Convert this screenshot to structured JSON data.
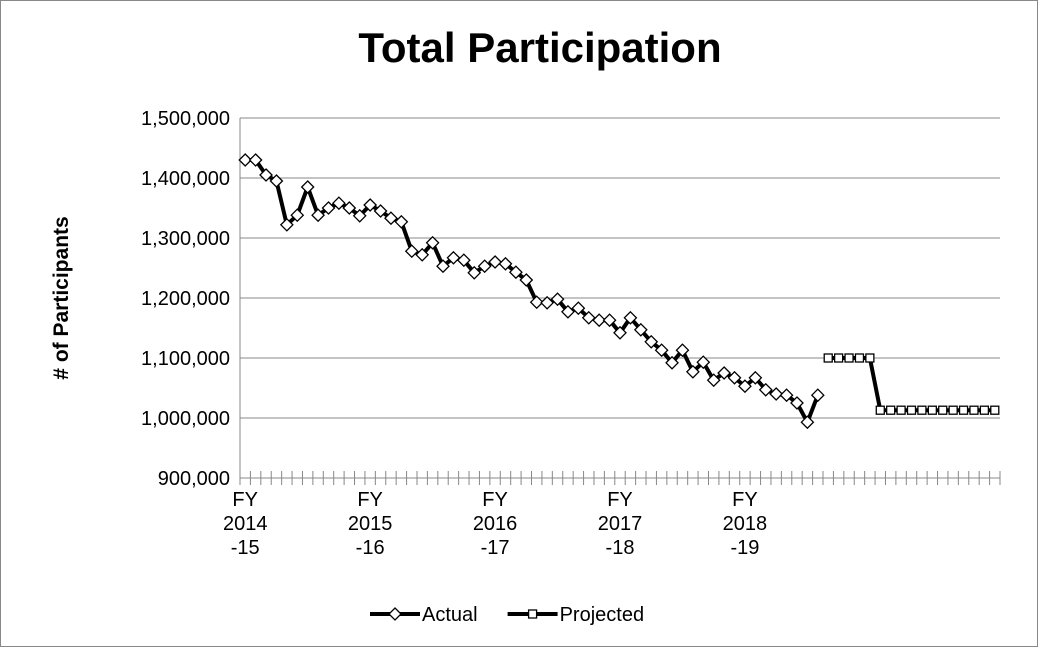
{
  "chart_data": {
    "type": "line",
    "title": "Total Participation",
    "y_label": "# of Participants",
    "categories": [
      "FY\n2014\n-15",
      null,
      null,
      null,
      null,
      null,
      null,
      null,
      null,
      null,
      null,
      null,
      "FY\n2015\n-16",
      null,
      null,
      null,
      null,
      null,
      null,
      null,
      null,
      null,
      null,
      null,
      "FY\n2016\n-17",
      null,
      null,
      null,
      null,
      null,
      null,
      null,
      null,
      null,
      null,
      null,
      "FY\n2017\n-18",
      null,
      null,
      null,
      null,
      null,
      null,
      null,
      null,
      null,
      null,
      null,
      "FY\n2018\n-19",
      null,
      null,
      null,
      null,
      null,
      null,
      null,
      null,
      null,
      null,
      null,
      null,
      null,
      null,
      null,
      null,
      null,
      null,
      null,
      null,
      null,
      null,
      null,
      null
    ],
    "series": [
      {
        "name": "Actual",
        "color": "#000000",
        "marker": "diamond",
        "values": [
          1430000,
          1430000,
          1405000,
          1395000,
          1322000,
          1338000,
          1385000,
          1338000,
          1350000,
          1358000,
          1350000,
          1337000,
          1355000,
          1345000,
          1333000,
          1327000,
          1278000,
          1272000,
          1292000,
          1253000,
          1267000,
          1263000,
          1242000,
          1253000,
          1260000,
          1257000,
          1243000,
          1230000,
          1193000,
          1192000,
          1198000,
          1177000,
          1183000,
          1167000,
          1163000,
          1163000,
          1142000,
          1167000,
          1147000,
          1127000,
          1113000,
          1092000,
          1113000,
          1077000,
          1093000,
          1063000,
          1075000,
          1067000,
          1053000,
          1067000,
          1047000,
          1040000,
          1038000,
          1025000,
          993000,
          1038000,
          null,
          null,
          null,
          null,
          null,
          null,
          null,
          null,
          null,
          null,
          null,
          null,
          null,
          null,
          null,
          null,
          null
        ]
      },
      {
        "name": "Projected",
        "color": "#000000",
        "marker": "square",
        "values": [
          null,
          null,
          null,
          null,
          null,
          null,
          null,
          null,
          null,
          null,
          null,
          null,
          null,
          null,
          null,
          null,
          null,
          null,
          null,
          null,
          null,
          null,
          null,
          null,
          null,
          null,
          null,
          null,
          null,
          null,
          null,
          null,
          null,
          null,
          null,
          null,
          null,
          null,
          null,
          null,
          null,
          null,
          null,
          null,
          null,
          null,
          null,
          null,
          null,
          null,
          null,
          null,
          null,
          null,
          null,
          null,
          1100000,
          1100000,
          1100000,
          1100000,
          1100000,
          1013000,
          1013000,
          1013000,
          1013000,
          1013000,
          1013000,
          1013000,
          1013000,
          1013000,
          1013000,
          1013000,
          1013000
        ]
      }
    ],
    "ylim": [
      900000,
      1500000
    ],
    "yticks": [
      {
        "value": 900000,
        "label": "900,000"
      },
      {
        "value": 1000000,
        "label": "1,000,000"
      },
      {
        "value": 1100000,
        "label": "1,100,000"
      },
      {
        "value": 1200000,
        "label": "1,200,000"
      },
      {
        "value": 1300000,
        "label": "1,300,000"
      },
      {
        "value": 1400000,
        "label": "1,400,000"
      },
      {
        "value": 1500000,
        "label": "1,500,000"
      }
    ],
    "grid": true,
    "legend": "bottom"
  }
}
